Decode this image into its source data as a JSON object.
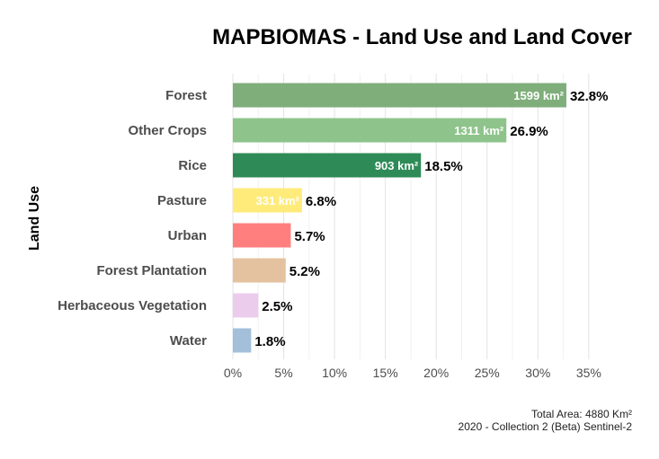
{
  "chart_data": {
    "type": "bar",
    "orientation": "horizontal",
    "title": "MAPBIOMAS - Land Use and Land Cover",
    "ylabel": "Land Use",
    "xlabel": "",
    "categories": [
      "Forest",
      "Other Crops",
      "Rice",
      "Pasture",
      "Urban",
      "Forest Plantation",
      "Herbaceous Vegetation",
      "Water"
    ],
    "values": [
      32.8,
      26.9,
      18.5,
      6.8,
      5.7,
      5.2,
      2.5,
      1.8
    ],
    "value_labels": [
      "32.8%",
      "26.9%",
      "18.5%",
      "6.8%",
      "5.7%",
      "5.2%",
      "2.5%",
      "1.8%"
    ],
    "area_labels": [
      "1599 km²",
      "1311 km²",
      "903 km²",
      "331 km²",
      "",
      "",
      "",
      ""
    ],
    "colors": [
      "#7fae7a",
      "#8ec48b",
      "#2e8b57",
      "#ffeb7a",
      "#ff7f7f",
      "#e5c29f",
      "#ecccec",
      "#a3bfda"
    ],
    "xticks": [
      "0%",
      "5%",
      "10%",
      "15%",
      "20%",
      "25%",
      "30%",
      "35%"
    ],
    "xlim": [
      0,
      35
    ],
    "grid": true
  },
  "caption": {
    "line1": "Total Area: 4880 Km²",
    "line2": "2020 - Collection 2 (Beta)  Sentinel-2"
  }
}
